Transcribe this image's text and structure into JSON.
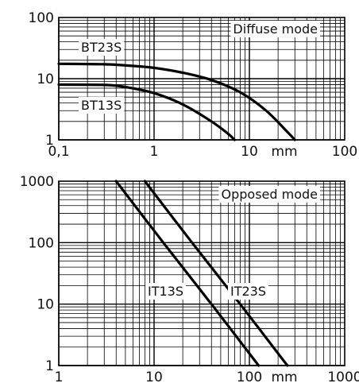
{
  "chart_data": [
    {
      "type": "line",
      "title": "",
      "annotation": "Diffuse mode",
      "xscale": "log",
      "yscale": "log",
      "xlim": [
        0.1,
        100
      ],
      "ylim": [
        1,
        100
      ],
      "xticks": [
        "0,1",
        "1",
        "10",
        "100"
      ],
      "yticks": [
        "1",
        "10",
        "100"
      ],
      "xunit": "mm",
      "grid": true,
      "series": [
        {
          "name": "BT23S",
          "points": [
            [
              0.1,
              17.5
            ],
            [
              0.3,
              17.2
            ],
            [
              0.5,
              16.5
            ],
            [
              1,
              15
            ],
            [
              2,
              12.5
            ],
            [
              4,
              9.5
            ],
            [
              8,
              6
            ],
            [
              15,
              3
            ],
            [
              25,
              1.35
            ],
            [
              30,
              1
            ]
          ]
        },
        {
          "name": "BT13S",
          "points": [
            [
              0.1,
              8
            ],
            [
              0.3,
              7.9
            ],
            [
              0.5,
              7.3
            ],
            [
              1,
              5.8
            ],
            [
              2,
              3.8
            ],
            [
              4,
              2
            ],
            [
              6,
              1.25
            ],
            [
              7,
              1
            ]
          ]
        }
      ]
    },
    {
      "type": "line",
      "title": "",
      "annotation": "Opposed mode",
      "xscale": "log",
      "yscale": "log",
      "xlim": [
        1,
        1000
      ],
      "ylim": [
        1,
        1000
      ],
      "xticks": [
        "1",
        "10",
        "100",
        "1000"
      ],
      "yticks": [
        "1",
        "10",
        "100",
        "1000"
      ],
      "xunit": "mm",
      "grid": true,
      "series": [
        {
          "name": "IT13S",
          "points": [
            [
              4,
              1000
            ],
            [
              12.5,
              100
            ],
            [
              40,
              10
            ],
            [
              125,
              1
            ]
          ]
        },
        {
          "name": "IT23S",
          "points": [
            [
              8,
              1000
            ],
            [
              25,
              100
            ],
            [
              80,
              10
            ],
            [
              250,
              1
            ]
          ]
        }
      ]
    }
  ]
}
